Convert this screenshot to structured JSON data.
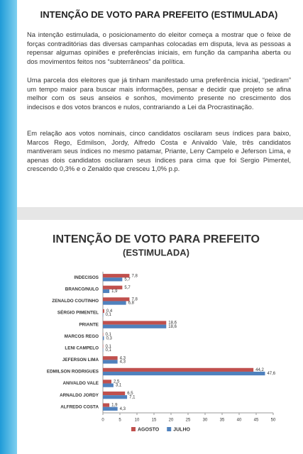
{
  "document": {
    "heading": "INTENÇÃO DE VOTO PARA PREFEITO (ESTIMULADA)",
    "paragraphs": [
      "Na intenção estimulada, o posicionamento do eleitor começa a mostrar que o feixe de forças contraditórias das diversas campanhas colocadas em disputa, leva as pessoas a repensar algumas opiniões e preferências iniciais, em função da campanha aberta ou dos movimentos feitos nos “subterrâneos” da política.",
      "Uma parcela dos eleitores que já tinham manifestado uma preferência inicial, “pediram” um tempo maior para buscar mais informações, pensar e decidir que projeto se afina melhor com os seus anseios e sonhos, movimento presente no crescimento dos indecisos e dos votos brancos e nulos, contrariando a Lei da Procrastinação.",
      "Em relação aos votos nominais, cinco candidatos oscilaram seus índices para baixo, Marcos Rego, Edmilson, Jordy, Alfredo Costa e Anivaldo Vale, três candidatos mantiveram seus índices no mesmo patamar, Priante, Leny Campelo e Jeferson Lima, e apenas dois candidatos oscilaram seus índices para cima que foi Sergio Pimentel, crescendo 0,3% e o Zenaldo que cresceu 1,0% p.p."
    ]
  },
  "chart_data": {
    "type": "hbar",
    "title": "INTENÇÃO DE VOTO PARA PREFEITO",
    "subtitle": "(ESTIMULADA)",
    "categories": [
      "INDECISOS",
      "BRANCO/NULO",
      "ZENALDO COUTINHO",
      "SÉRGIO PIMENTEL",
      "PRIANTE",
      "MARCOS REGO",
      "LENI CAMPELO",
      "JEFERSON LIMA",
      "EDMILSON RODRIGUES",
      "ANIVALDO VALE",
      "ARNALDO JORDY",
      "ALFREDO COSTA"
    ],
    "series": [
      {
        "name": "AGOSTO",
        "color": "#c0504d",
        "values": [
          7.8,
          5.7,
          7.8,
          0.4,
          18.6,
          0.1,
          0.1,
          4.3,
          44.2,
          2.5,
          6.5,
          1.9
        ],
        "value_labels": [
          "7,8",
          "5,7",
          "7,8",
          "0,4",
          "18,6",
          "0,1",
          "0,1",
          "4,3",
          "44,2",
          "2,5",
          "6,5",
          "1,9"
        ]
      },
      {
        "name": "JULHO",
        "color": "#4f81bd",
        "values": [
          5.7,
          1.9,
          6.8,
          0.1,
          18.6,
          0.3,
          0.1,
          4.3,
          47.6,
          3.1,
          7.1,
          4.3
        ],
        "value_labels": [
          "5,7",
          "1,9",
          "6,8",
          "0,1",
          "18,6",
          "0,3",
          "0,1",
          "4,3",
          "47,6",
          "3,1",
          "7,1",
          "4,3"
        ]
      }
    ],
    "xlim": [
      0,
      50
    ],
    "xticks": [
      0,
      5,
      10,
      15,
      20,
      25,
      30,
      35,
      40,
      45,
      50
    ],
    "grid": false,
    "legend": "bottom"
  }
}
